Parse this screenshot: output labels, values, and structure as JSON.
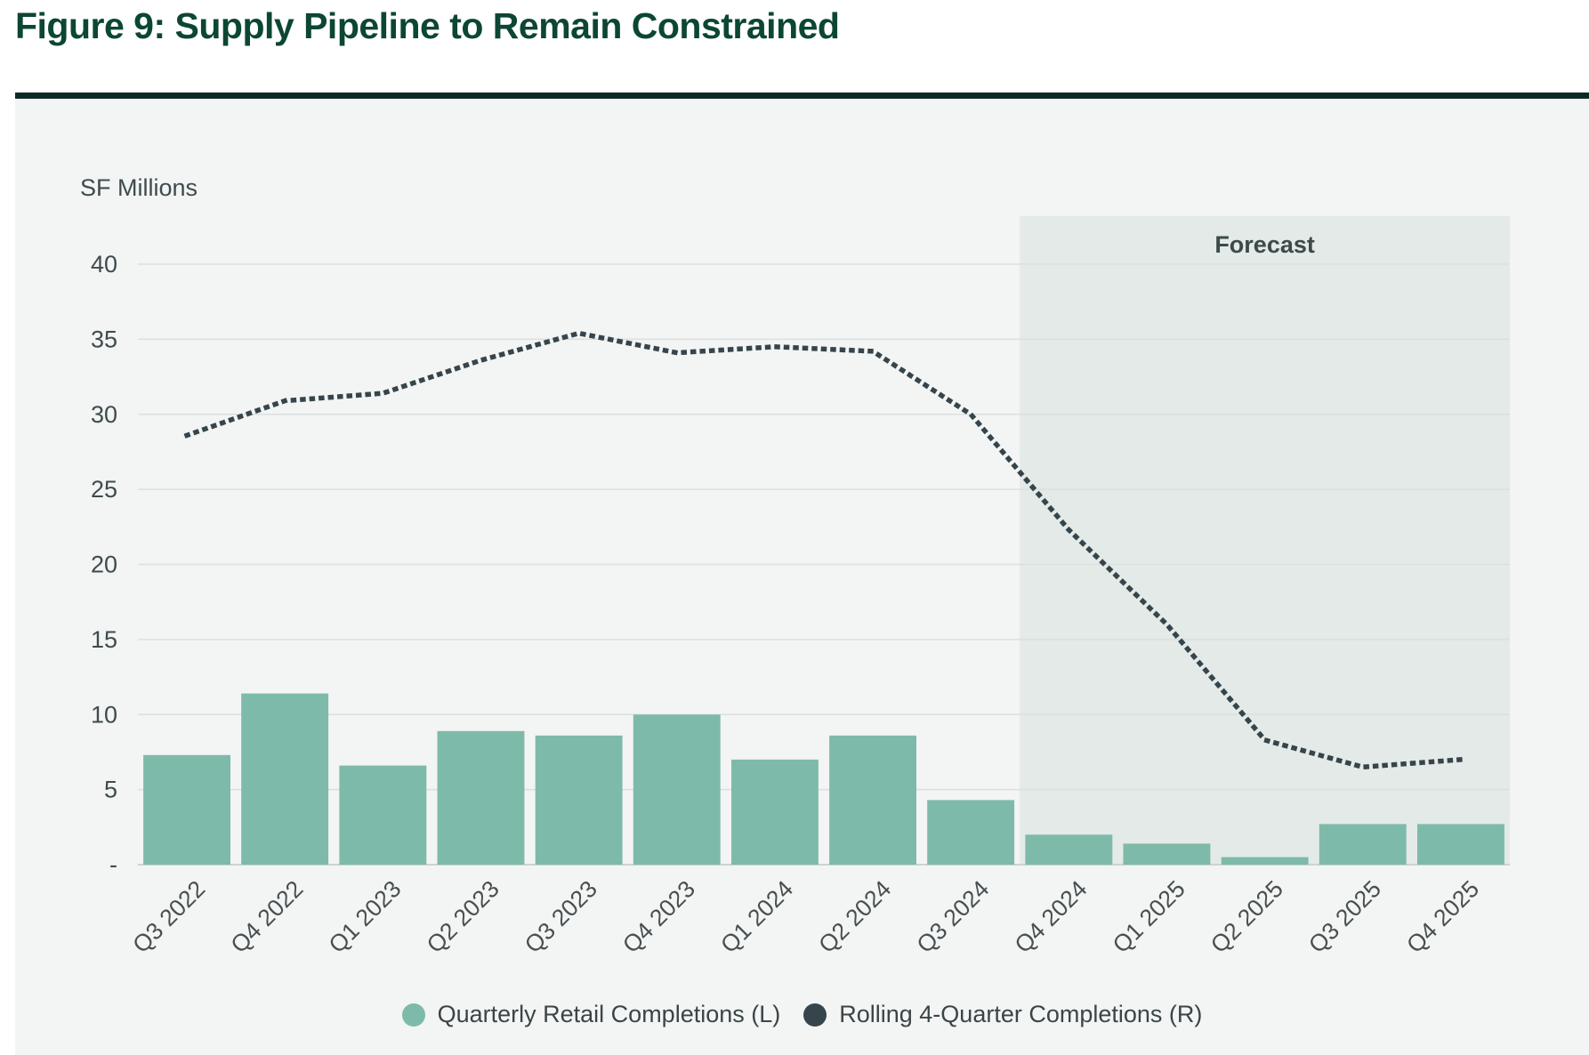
{
  "figure": {
    "title": "Figure 9: Supply Pipeline to Remain Constrained"
  },
  "chart_data": {
    "type": "bar",
    "title": "Figure 9: Supply Pipeline to Remain Constrained",
    "unit_label": "SF Millions",
    "categories": [
      "Q3 2022",
      "Q4 2022",
      "Q1 2023",
      "Q2 2023",
      "Q3 2023",
      "Q4 2023",
      "Q1 2024",
      "Q2 2024",
      "Q3 2024",
      "Q4 2024",
      "Q1 2025",
      "Q2 2025",
      "Q3 2025",
      "Q4 2025"
    ],
    "series": [
      {
        "name": "Quarterly Retail Completions (L)",
        "type": "bar",
        "color": "#7EBAAA",
        "values": [
          7.3,
          11.4,
          6.6,
          8.9,
          8.6,
          10.0,
          7.0,
          8.6,
          4.3,
          2.0,
          1.4,
          0.5,
          2.7,
          2.7
        ]
      },
      {
        "name": "Rolling 4-Quarter Completions (R)",
        "type": "line",
        "style": "dotted",
        "color": "#36454C",
        "values": [
          28.6,
          30.9,
          31.4,
          33.6,
          35.4,
          34.1,
          34.5,
          34.2,
          30.0,
          22.3,
          16.0,
          8.3,
          6.5,
          7.0
        ]
      }
    ],
    "ylim": [
      0,
      40
    ],
    "y_ticks": [
      {
        "label": "40",
        "value": 40
      },
      {
        "label": "35",
        "value": 35
      },
      {
        "label": "30",
        "value": 30
      },
      {
        "label": "25",
        "value": 25
      },
      {
        "label": "20",
        "value": 20
      },
      {
        "label": "15",
        "value": 15
      },
      {
        "label": "10",
        "value": 10
      },
      {
        "label": "5",
        "value": 5
      },
      {
        "label": "-",
        "value": 0
      }
    ],
    "grid": true,
    "legend_position": "bottom",
    "forecast": {
      "label": "Forecast",
      "start_category": "Q4 2024",
      "fill": "#E3EAE7"
    },
    "colors": {
      "grid": "#DCDFDF",
      "baseline": "#CED2D2",
      "axis_text": "#3F4B4D",
      "tick_text": "#474F50",
      "forecast_text": "#3D4A4C",
      "panel_bg": "#F3F4F4",
      "title_green": "#0C4634",
      "rule_dark": "#0D2B26"
    }
  }
}
